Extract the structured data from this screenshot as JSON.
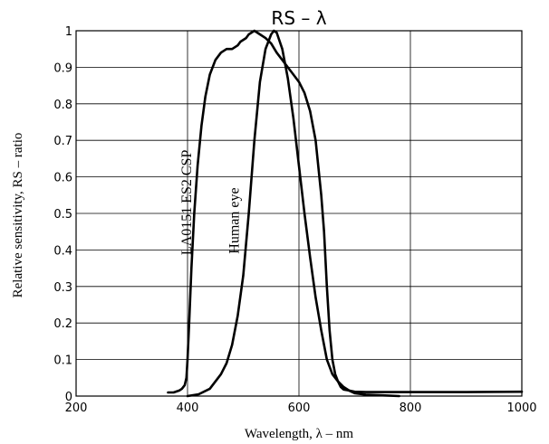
{
  "chart_data": {
    "type": "line",
    "title": "RS – λ",
    "xlabel": "Wavelength, λ – nm",
    "ylabel": "Relative sensitivity, RS – ratio",
    "xlim": [
      200,
      1000
    ],
    "ylim": [
      0,
      1
    ],
    "xticks": [
      "200",
      "400",
      "600",
      "800",
      "1000"
    ],
    "yticks": [
      "0",
      "0.1",
      "0.2",
      "0.3",
      "0.4",
      "0.5",
      "0.6",
      "0.7",
      "0.8",
      "0.9",
      "1"
    ],
    "grid": true,
    "series": [
      {
        "name": "LA0151 ES2 CSP",
        "x": [
          365,
          375,
          385,
          390,
          395,
          398,
          400,
          403,
          407,
          412,
          418,
          425,
          432,
          440,
          450,
          460,
          470,
          480,
          490,
          495,
          500,
          505,
          510,
          515,
          520,
          530,
          540,
          550,
          560,
          570,
          580,
          590,
          600,
          610,
          620,
          630,
          640,
          645,
          650,
          655,
          660,
          665,
          670,
          675,
          680,
          690,
          700,
          720,
          750,
          800,
          900,
          1000
        ],
        "y": [
          0.01,
          0.01,
          0.015,
          0.02,
          0.03,
          0.05,
          0.1,
          0.2,
          0.35,
          0.5,
          0.63,
          0.74,
          0.82,
          0.88,
          0.92,
          0.94,
          0.95,
          0.95,
          0.96,
          0.97,
          0.975,
          0.98,
          0.99,
          0.995,
          1.0,
          0.99,
          0.98,
          0.965,
          0.94,
          0.92,
          0.9,
          0.88,
          0.86,
          0.83,
          0.78,
          0.7,
          0.55,
          0.45,
          0.3,
          0.18,
          0.1,
          0.06,
          0.04,
          0.025,
          0.018,
          0.015,
          0.012,
          0.011,
          0.011,
          0.011,
          0.011,
          0.012
        ]
      },
      {
        "name": "Human eye",
        "x": [
          400,
          420,
          440,
          460,
          470,
          480,
          490,
          500,
          510,
          520,
          530,
          540,
          550,
          555,
          560,
          570,
          580,
          590,
          600,
          610,
          620,
          630,
          640,
          650,
          660,
          670,
          680,
          690,
          700,
          720,
          750,
          780
        ],
        "y": [
          0.0,
          0.005,
          0.02,
          0.06,
          0.09,
          0.14,
          0.22,
          0.33,
          0.5,
          0.7,
          0.86,
          0.95,
          0.99,
          1.0,
          0.995,
          0.95,
          0.87,
          0.76,
          0.63,
          0.5,
          0.38,
          0.27,
          0.18,
          0.1,
          0.06,
          0.04,
          0.025,
          0.015,
          0.008,
          0.004,
          0.002,
          0.0
        ]
      }
    ]
  }
}
